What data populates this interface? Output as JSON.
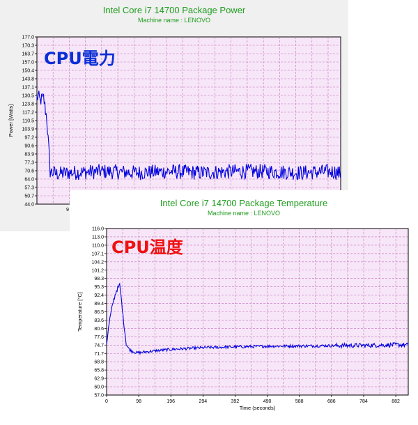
{
  "colors": {
    "title": "#1e9c1e",
    "plot_bg": "#f7e6f7",
    "grid": "#c070c0",
    "line": "#0000dd",
    "power_label": "#0a2fd6",
    "temp_label": "#ee1111"
  },
  "power_chart": {
    "title": "Intel Core i7 14700 Package Power",
    "subtitle": "Machine name : LENOVO",
    "overlay": "CPU電力",
    "ylabel": "Power [Watts]",
    "yticks": [
      "177.0",
      "170.3",
      "163.7",
      "157.0",
      "150.4",
      "143.8",
      "137.1",
      "130.5",
      "123.8",
      "117.2",
      "110.5",
      "103.9",
      "97.2",
      "90.6",
      "83.9",
      "77.3",
      "70.6",
      "64.0",
      "57.3",
      "50.7",
      "44.0"
    ],
    "xtick_visible": "9"
  },
  "temp_chart": {
    "title": "Intel Core i7 14700 Package Temperature",
    "subtitle": "Machine name : LENOVO",
    "overlay": "CPU温度",
    "ylabel": "Temperature [°C]",
    "xlabel": "Time (seconds)",
    "yticks": [
      "116.0",
      "113.0",
      "110.0",
      "107.1",
      "104.2",
      "101.2",
      "98.3",
      "95.3",
      "92.4",
      "89.4",
      "86.5",
      "83.6",
      "80.6",
      "77.6",
      "74.7",
      "71.7",
      "68.8",
      "65.8",
      "62.9",
      "60.0",
      "57.0"
    ],
    "xticks": [
      "0",
      "98",
      "196",
      "294",
      "392",
      "490",
      "588",
      "686",
      "784",
      "882"
    ]
  },
  "chart_data": [
    {
      "type": "line",
      "title": "Intel Core i7 14700 Package Power",
      "ylabel": "Power [Watts]",
      "ylim": [
        44.0,
        177.0
      ],
      "xlim": [
        0,
        920
      ],
      "series": [
        {
          "x": [
            0,
            5,
            10,
            20,
            24,
            30,
            40,
            60,
            100,
            200,
            300,
            400,
            500,
            600,
            700,
            800,
            900,
            920
          ],
          "y": [
            128,
            130,
            126,
            129,
            122,
            112,
            70,
            68,
            69,
            70,
            69,
            70,
            69,
            70,
            70,
            69,
            70,
            68
          ]
        }
      ]
    },
    {
      "type": "line",
      "title": "Intel Core i7 14700 Package Temperature",
      "ylabel": "Temperature [°C]",
      "xlabel": "Time (seconds)",
      "ylim": [
        57.0,
        116.0
      ],
      "xlim": [
        0,
        920
      ],
      "series": [
        {
          "x": [
            0,
            5,
            10,
            15,
            20,
            25,
            30,
            35,
            40,
            45,
            50,
            55,
            60,
            70,
            80,
            90,
            100,
            120,
            150,
            200,
            250,
            300,
            400,
            500,
            600,
            700,
            800,
            900,
            920
          ],
          "y": [
            75,
            80,
            84,
            87,
            90,
            92,
            94,
            95,
            96,
            91,
            85,
            80,
            75,
            73,
            72.5,
            72,
            72,
            72.3,
            72.7,
            73.2,
            73.5,
            73.8,
            74.1,
            74.3,
            74.4,
            74.5,
            74.6,
            74.8,
            74.7
          ]
        }
      ]
    }
  ]
}
